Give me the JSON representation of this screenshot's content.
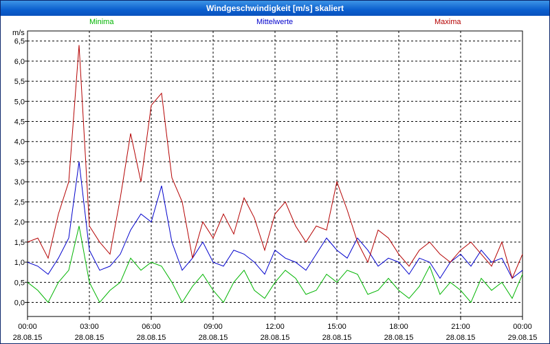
{
  "window": {
    "title": "Windgeschwindigkeit [m/s] skaliert"
  },
  "colors": {
    "minima": "#00b400",
    "mittelwerte": "#0000cc",
    "maxima": "#b40000"
  },
  "chart_data": {
    "type": "line",
    "title": "Windgeschwindigkeit [m/s] skaliert",
    "ylabel": "m/s",
    "ylim": [
      -0.35,
      6.75
    ],
    "yticks": [
      "0,0",
      "0,5",
      "1,0",
      "1,5",
      "2,0",
      "2,5",
      "3,0",
      "3,5",
      "4,0",
      "4,5",
      "5,0",
      "5,5",
      "6,0",
      "6,5"
    ],
    "xlim": [
      "28.08.15 00:00",
      "29.08.15 00:00"
    ],
    "xticks": [
      {
        "time": "00:00",
        "date": "28.08.15"
      },
      {
        "time": "03:00",
        "date": "28.08.15"
      },
      {
        "time": "06:00",
        "date": "28.08.15"
      },
      {
        "time": "09:00",
        "date": "28.08.15"
      },
      {
        "time": "12:00",
        "date": "28.08.15"
      },
      {
        "time": "15:00",
        "date": "28.08.15"
      },
      {
        "time": "18:00",
        "date": "28.08.15"
      },
      {
        "time": "21:00",
        "date": "28.08.15"
      },
      {
        "time": "00:00",
        "date": "29.08.15"
      }
    ],
    "grid": true,
    "x_hours": [
      0,
      0.5,
      1,
      1.5,
      2,
      2.5,
      3,
      3.5,
      4,
      4.5,
      5,
      5.5,
      6,
      6.5,
      7,
      7.5,
      8,
      8.5,
      9,
      9.5,
      10,
      10.5,
      11,
      11.5,
      12,
      12.5,
      13,
      13.5,
      14,
      14.5,
      15,
      15.5,
      16,
      16.5,
      17,
      17.5,
      18,
      18.5,
      19,
      19.5,
      20,
      20.5,
      21,
      21.5,
      22,
      22.5,
      23,
      23.5,
      24
    ],
    "series": [
      {
        "name": "Minima",
        "color": "#00b400",
        "values": [
          0.5,
          0.3,
          0.0,
          0.5,
          0.8,
          1.9,
          0.5,
          0.0,
          0.3,
          0.5,
          1.1,
          0.8,
          1.0,
          0.9,
          0.5,
          0.0,
          0.4,
          0.7,
          0.3,
          0.0,
          0.5,
          0.8,
          0.3,
          0.1,
          0.5,
          0.8,
          0.6,
          0.2,
          0.3,
          0.7,
          0.5,
          0.8,
          0.7,
          0.2,
          0.3,
          0.6,
          0.3,
          0.1,
          0.4,
          0.9,
          0.2,
          0.5,
          0.3,
          0.0,
          0.6,
          0.3,
          0.5,
          0.1,
          0.7
        ]
      },
      {
        "name": "Mittelwerte",
        "color": "#0000cc",
        "values": [
          1.0,
          0.9,
          0.7,
          1.1,
          1.6,
          3.5,
          1.3,
          0.8,
          0.9,
          1.2,
          1.8,
          2.2,
          2.0,
          2.9,
          1.5,
          0.8,
          1.1,
          1.5,
          1.0,
          0.9,
          1.3,
          1.2,
          1.0,
          0.7,
          1.3,
          1.1,
          1.0,
          0.8,
          1.2,
          1.6,
          1.3,
          1.1,
          1.6,
          1.3,
          0.9,
          1.1,
          1.0,
          0.7,
          1.1,
          1.0,
          0.6,
          1.0,
          1.2,
          0.9,
          1.3,
          1.0,
          1.1,
          0.6,
          0.8
        ]
      },
      {
        "name": "Maxima",
        "color": "#b40000",
        "values": [
          1.5,
          1.6,
          1.1,
          2.2,
          3.0,
          6.4,
          1.9,
          1.5,
          1.2,
          2.6,
          4.2,
          3.0,
          4.9,
          5.2,
          3.1,
          2.5,
          1.1,
          2.0,
          1.6,
          2.2,
          1.7,
          2.6,
          2.1,
          1.3,
          2.2,
          2.5,
          1.9,
          1.5,
          1.9,
          1.8,
          3.0,
          2.3,
          1.5,
          1.0,
          1.8,
          1.6,
          1.2,
          0.9,
          1.3,
          1.5,
          1.2,
          1.0,
          1.3,
          1.5,
          1.2,
          0.9,
          1.5,
          0.6,
          1.2
        ]
      }
    ]
  }
}
